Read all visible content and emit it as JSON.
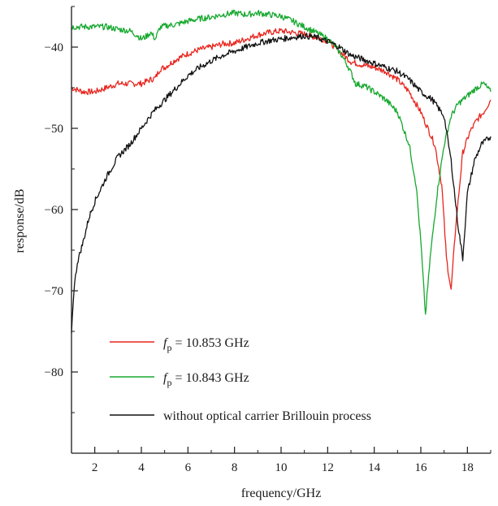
{
  "chart_data": {
    "type": "line",
    "xlabel": "frequency/GHz",
    "ylabel": "response/dB",
    "xlim": [
      1,
      19
    ],
    "ylim": [
      -90,
      -35
    ],
    "x_ticks": [
      2,
      4,
      6,
      8,
      10,
      12,
      14,
      16,
      18
    ],
    "y_ticks": [
      -40,
      -50,
      -60,
      -70,
      -80
    ],
    "grid": false,
    "legend_position": "bottom-left",
    "series": [
      {
        "name_prefix": "f",
        "name_sub": "p",
        "name_rest": " = 10.853 GHz",
        "color": "#e8251d",
        "x": [
          1,
          1.5,
          2,
          2.5,
          3,
          3.5,
          4,
          4.4,
          4.6,
          4.8,
          5,
          5.5,
          6,
          6.5,
          7,
          7.5,
          8,
          8.5,
          9,
          9.5,
          10,
          10.5,
          11,
          11.5,
          12,
          12.5,
          13,
          13.5,
          14,
          14.5,
          15,
          15.5,
          16,
          16.3,
          16.6,
          16.9,
          17.1,
          17.3,
          17.5,
          17.8,
          18.1,
          18.4,
          18.7,
          19
        ],
        "y": [
          -45,
          -45.5,
          -45.5,
          -45,
          -44.5,
          -44.5,
          -44.5,
          -44,
          -43.8,
          -42.7,
          -42.5,
          -41.5,
          -40.8,
          -40.3,
          -40,
          -39.6,
          -39.5,
          -39,
          -38.5,
          -38.2,
          -38,
          -38.2,
          -38.4,
          -38.8,
          -39.2,
          -40.5,
          -41.8,
          -42.2,
          -42.5,
          -43,
          -44,
          -45.5,
          -48,
          -50,
          -52,
          -57,
          -66,
          -70,
          -62,
          -53,
          -50.5,
          -49,
          -48,
          -46.5
        ]
      },
      {
        "name_prefix": "f",
        "name_sub": "p",
        "name_rest": " = 10.843 GHz",
        "color": "#16a82e",
        "x": [
          1,
          1.5,
          2,
          2.5,
          3,
          3.5,
          3.8,
          4,
          4.2,
          4.4,
          4.6,
          4.8,
          5,
          5.5,
          6,
          6.5,
          7,
          7.5,
          8,
          8.5,
          9,
          9.5,
          10,
          10.5,
          11,
          11.5,
          12,
          12.3,
          12.6,
          12.9,
          13.2,
          13.6,
          14,
          14.5,
          15,
          15.5,
          15.8,
          16,
          16.2,
          16.4,
          16.7,
          17,
          17.3,
          17.6,
          18,
          18.4,
          18.7,
          19
        ],
        "y": [
          -37.5,
          -37.5,
          -37.5,
          -37.5,
          -37.8,
          -38,
          -38.5,
          -39,
          -38.7,
          -38.2,
          -39,
          -37.6,
          -37.4,
          -37.2,
          -36.8,
          -36.5,
          -36.3,
          -36,
          -35.8,
          -36,
          -35.8,
          -36,
          -36.2,
          -36.8,
          -37.5,
          -38.2,
          -39,
          -39.8,
          -41,
          -42.5,
          -44.5,
          -44.8,
          -45.5,
          -46.5,
          -48,
          -52,
          -57,
          -64,
          -73,
          -66,
          -58,
          -52,
          -48.5,
          -47,
          -46,
          -45,
          -44.5,
          -45.5
        ]
      },
      {
        "name": "without optical carrier Brillouin process",
        "color": "#111111",
        "x": [
          1,
          1.1,
          1.25,
          1.5,
          1.75,
          2,
          2.5,
          3,
          3.5,
          4,
          4.5,
          5,
          5.5,
          6,
          6.5,
          7,
          7.5,
          8,
          8.5,
          9,
          9.5,
          10,
          10.5,
          11,
          11.5,
          12,
          12.5,
          13,
          13.5,
          14,
          14.5,
          15,
          15.5,
          16,
          16.5,
          17,
          17.3,
          17.6,
          17.8,
          18,
          18.3,
          18.6,
          19
        ],
        "y": [
          -75,
          -70,
          -66.5,
          -64,
          -61,
          -59,
          -56,
          -53.5,
          -52,
          -50,
          -48,
          -46.5,
          -45,
          -43.5,
          -42.5,
          -41.7,
          -41,
          -40.5,
          -40,
          -39.5,
          -39.2,
          -39,
          -38.8,
          -38.6,
          -38.8,
          -39.3,
          -40,
          -41,
          -41.5,
          -42,
          -42.5,
          -43,
          -44,
          -45.5,
          -46.5,
          -48.5,
          -54,
          -62,
          -66,
          -58,
          -54,
          -52,
          -51
        ]
      }
    ]
  }
}
